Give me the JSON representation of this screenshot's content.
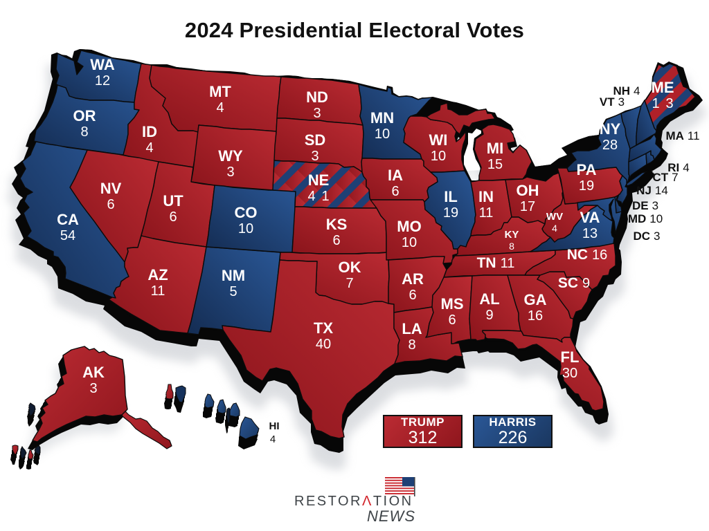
{
  "title": "2024 Presidential Electoral Votes",
  "colors": {
    "trump_red": "#b02129",
    "harris_blue": "#1e4075",
    "outline_black": "#0a0a0a",
    "background": "#ffffff",
    "logo_gray": "#3f4448",
    "logo_red": "#d2232a"
  },
  "callouts": {
    "NH": {
      "abbr": "NH",
      "votes": "4"
    },
    "VT": {
      "abbr": "VT",
      "votes": "3"
    },
    "MA": {
      "abbr": "MA",
      "votes": "11"
    },
    "RI": {
      "abbr": "RI",
      "votes": "4"
    },
    "CT": {
      "abbr": "CT",
      "votes": "7"
    },
    "NJ": {
      "abbr": "NJ",
      "votes": "14"
    },
    "DE": {
      "abbr": "DE",
      "votes": "3"
    },
    "MD": {
      "abbr": "MD",
      "votes": "10"
    },
    "DC": {
      "abbr": "DC",
      "votes": "3"
    }
  },
  "legend": {
    "trump": {
      "candidate": "TRUMP",
      "votes": "312",
      "party": "republican"
    },
    "harris": {
      "candidate": "HARRIS",
      "votes": "226",
      "party": "democratic"
    }
  },
  "logo": {
    "brand_pre": "RESTOR",
    "brand_accent": "Λ",
    "brand_post": "TION",
    "tagline": "NEWS",
    "flag_icon": "us-flag-icon"
  },
  "states": {
    "WA": {
      "abbr": "WA",
      "votes": "12",
      "winner": "dem"
    },
    "OR": {
      "abbr": "OR",
      "votes": "8",
      "winner": "dem"
    },
    "CA": {
      "abbr": "CA",
      "votes": "54",
      "winner": "dem"
    },
    "NV": {
      "abbr": "NV",
      "votes": "6",
      "winner": "rep"
    },
    "ID": {
      "abbr": "ID",
      "votes": "4",
      "winner": "rep"
    },
    "UT": {
      "abbr": "UT",
      "votes": "6",
      "winner": "rep"
    },
    "AZ": {
      "abbr": "AZ",
      "votes": "11",
      "winner": "rep"
    },
    "MT": {
      "abbr": "MT",
      "votes": "4",
      "winner": "rep"
    },
    "WY": {
      "abbr": "WY",
      "votes": "3",
      "winner": "rep"
    },
    "CO": {
      "abbr": "CO",
      "votes": "10",
      "winner": "dem"
    },
    "NM": {
      "abbr": "NM",
      "votes": "5",
      "winner": "dem"
    },
    "ND": {
      "abbr": "ND",
      "votes": "3",
      "winner": "rep"
    },
    "SD": {
      "abbr": "SD",
      "votes": "3",
      "winner": "rep"
    },
    "NE": {
      "abbr": "NE",
      "votes": "4 1",
      "winner": "split"
    },
    "KS": {
      "abbr": "KS",
      "votes": "6",
      "winner": "rep"
    },
    "OK": {
      "abbr": "OK",
      "votes": "7",
      "winner": "rep"
    },
    "TX": {
      "abbr": "TX",
      "votes": "40",
      "winner": "rep"
    },
    "MN": {
      "abbr": "MN",
      "votes": "10",
      "winner": "dem"
    },
    "IA": {
      "abbr": "IA",
      "votes": "6",
      "winner": "rep"
    },
    "MO": {
      "abbr": "MO",
      "votes": "10",
      "winner": "rep"
    },
    "AR": {
      "abbr": "AR",
      "votes": "6",
      "winner": "rep"
    },
    "LA": {
      "abbr": "LA",
      "votes": "8",
      "winner": "rep"
    },
    "WI": {
      "abbr": "WI",
      "votes": "10",
      "winner": "rep"
    },
    "IL": {
      "abbr": "IL",
      "votes": "19",
      "winner": "dem"
    },
    "MI": {
      "abbr": "MI",
      "votes": "15",
      "winner": "rep"
    },
    "IN": {
      "abbr": "IN",
      "votes": "11",
      "winner": "rep"
    },
    "OH": {
      "abbr": "OH",
      "votes": "17",
      "winner": "rep"
    },
    "KY": {
      "abbr": "KY",
      "votes": "8",
      "winner": "rep"
    },
    "TN": {
      "abbr": "TN",
      "votes": "11",
      "winner": "rep"
    },
    "MS": {
      "abbr": "MS",
      "votes": "6",
      "winner": "rep"
    },
    "AL": {
      "abbr": "AL",
      "votes": "9",
      "winner": "rep"
    },
    "GA": {
      "abbr": "GA",
      "votes": "16",
      "winner": "rep"
    },
    "FL": {
      "abbr": "FL",
      "votes": "30",
      "winner": "rep"
    },
    "SC": {
      "abbr": "SC",
      "votes": "9",
      "winner": "rep"
    },
    "NC": {
      "abbr": "NC",
      "votes": "16",
      "winner": "rep"
    },
    "WV": {
      "abbr": "WV",
      "votes": "4",
      "winner": "rep"
    },
    "VA": {
      "abbr": "VA",
      "votes": "13",
      "winner": "dem"
    },
    "PA": {
      "abbr": "PA",
      "votes": "19",
      "winner": "rep"
    },
    "NY": {
      "abbr": "NY",
      "votes": "28",
      "winner": "dem"
    },
    "NJ": {
      "abbr": "NJ",
      "votes": "14",
      "winner": "dem"
    },
    "DE": {
      "abbr": "DE",
      "votes": "3",
      "winner": "dem"
    },
    "MD": {
      "abbr": "MD",
      "votes": "10",
      "winner": "dem"
    },
    "CT": {
      "abbr": "CT",
      "votes": "7",
      "winner": "dem"
    },
    "RI": {
      "abbr": "RI",
      "votes": "4",
      "winner": "dem"
    },
    "MA": {
      "abbr": "MA",
      "votes": "11",
      "winner": "dem"
    },
    "VT": {
      "abbr": "VT",
      "votes": "3",
      "winner": "dem"
    },
    "NH": {
      "abbr": "NH",
      "votes": "4",
      "winner": "dem"
    },
    "ME": {
      "abbr": "ME",
      "votes": "1 3",
      "winner": "split"
    },
    "AK": {
      "abbr": "AK",
      "votes": "3",
      "winner": "rep"
    },
    "HI": {
      "abbr": "HI",
      "votes": "4",
      "winner": "dem"
    },
    "DC": {
      "abbr": "DC",
      "votes": "3",
      "winner": "dem"
    }
  }
}
